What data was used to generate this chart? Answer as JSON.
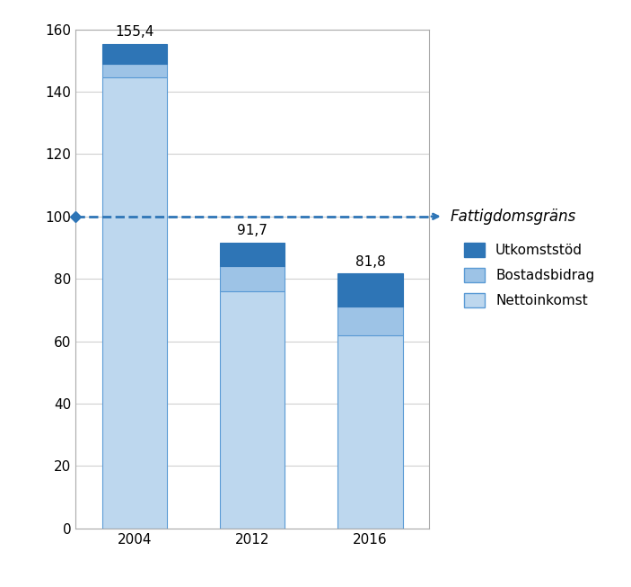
{
  "categories": [
    "2004",
    "2012",
    "2016"
  ],
  "nettoinkomst": [
    144.5,
    76.0,
    62.0
  ],
  "bostadsbidrag": [
    4.5,
    8.0,
    9.0
  ],
  "utkomststod": [
    6.4,
    7.7,
    10.8
  ],
  "totals": [
    155.4,
    91.7,
    81.8
  ],
  "color_nettoinkomst": "#BDD7EE",
  "color_bostadsbidrag": "#9DC3E6",
  "color_utkomststod": "#2E75B6",
  "poverty_line": 100,
  "poverty_label": "Fattigdomsgräns",
  "poverty_line_color": "#2E75B6",
  "ylabel_range": [
    0,
    160
  ],
  "yticks": [
    0,
    20,
    40,
    60,
    80,
    100,
    120,
    140,
    160
  ],
  "bar_width": 0.55,
  "background_color": "#FFFFFF",
  "grid_color": "#D0D0D0",
  "legend_labels": [
    "Utkomststöd",
    "Bostadsbidrag",
    "Nettoinkomst"
  ],
  "annotation_fontsize": 11,
  "tick_fontsize": 11,
  "legend_fontsize": 11
}
